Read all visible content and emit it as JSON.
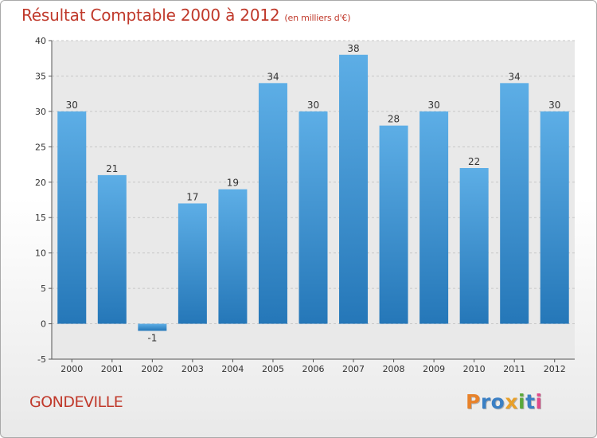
{
  "chart_data": {
    "type": "bar",
    "title": "Résultat Comptable 2000 à 2012",
    "subtitle": "(en milliers d'€)",
    "categories": [
      "2000",
      "2001",
      "2002",
      "2003",
      "2004",
      "2005",
      "2006",
      "2007",
      "2008",
      "2009",
      "2010",
      "2011",
      "2012"
    ],
    "values": [
      30,
      21,
      -1,
      17,
      19,
      34,
      30,
      38,
      28,
      30,
      22,
      34,
      30
    ],
    "value_labels": [
      "30",
      "21",
      "-1",
      "17",
      "19",
      "34",
      "30",
      "38",
      "28",
      "30",
      "22",
      "34",
      "30"
    ],
    "ylim": [
      -5,
      40
    ],
    "yticks": [
      -5,
      0,
      5,
      10,
      15,
      20,
      25,
      30,
      35,
      40
    ],
    "xlabel": "",
    "ylabel": "",
    "grid": "horizontal dashed",
    "colors": {
      "bar_top": "#5daee6",
      "bar_bottom": "#2577b8",
      "title": "#c0392b",
      "text": "#333333"
    }
  },
  "commune": "GONDEVILLE",
  "logo": {
    "letters": [
      "P",
      "r",
      "o",
      "x",
      "i",
      "t",
      "i"
    ],
    "colors": [
      "#e8822a",
      "#3a7fc4",
      "#3a7fc4",
      "#e8a02a",
      "#5aa83a",
      "#3a7fc4",
      "#e04a8a"
    ]
  }
}
